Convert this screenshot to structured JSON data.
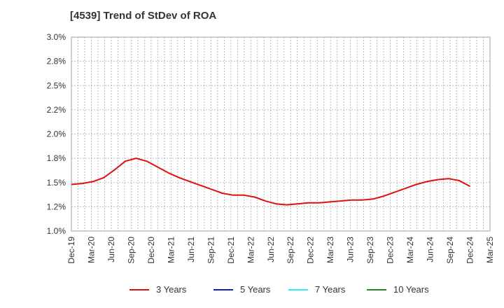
{
  "chart_data": {
    "type": "line",
    "title": "[4539]  Trend of StDev of ROA",
    "xlabel": "",
    "ylabel": "",
    "x_tick_labels": [
      "Dec-19",
      "Mar-20",
      "Jun-20",
      "Sep-20",
      "Dec-20",
      "Mar-21",
      "Jun-21",
      "Sep-21",
      "Dec-21",
      "Mar-22",
      "Jun-22",
      "Sep-22",
      "Dec-22",
      "Mar-23",
      "Jun-23",
      "Sep-23",
      "Dec-23",
      "Mar-24",
      "Jun-24",
      "Sep-24",
      "Dec-24",
      "Mar-25"
    ],
    "y_tick_labels": [
      "1.0%",
      "1.2%",
      "1.5%",
      "1.8%",
      "2.0%",
      "2.2%",
      "2.5%",
      "2.8%",
      "3.0%"
    ],
    "ylim": [
      1.0,
      3.0
    ],
    "grid": true,
    "legend_position": "bottom",
    "series": [
      {
        "name": "3 Years",
        "color": "#dd1111",
        "values": [
          1.48,
          1.49,
          1.51,
          1.55,
          1.63,
          1.72,
          1.75,
          1.72,
          1.66,
          1.6,
          1.55,
          1.51,
          1.47,
          1.43,
          1.39,
          1.37,
          1.37,
          1.35,
          1.31,
          1.28,
          1.27,
          1.28,
          1.29,
          1.29,
          1.3,
          1.31,
          1.32,
          1.32,
          1.33,
          1.36,
          1.4,
          1.44,
          1.48,
          1.51,
          1.53,
          1.54,
          1.52,
          1.46
        ]
      },
      {
        "name": "5 Years",
        "color": "#1122bb",
        "values": [
          null,
          null,
          null,
          null,
          null,
          null,
          null,
          null,
          null,
          null,
          null,
          null,
          null,
          null,
          null,
          null,
          null,
          null,
          null,
          null,
          null,
          null,
          null,
          null,
          null,
          null,
          null,
          null,
          null,
          null,
          null,
          null,
          null,
          null,
          null,
          null,
          null,
          null
        ]
      },
      {
        "name": "7 Years",
        "color": "#33eeee",
        "values": [
          null,
          null,
          null,
          null,
          null,
          null,
          null,
          null,
          null,
          null,
          null,
          null,
          null,
          null,
          null,
          null,
          null,
          null,
          null,
          null,
          null,
          null,
          null,
          null,
          null,
          null,
          null,
          null,
          null,
          null,
          null,
          null,
          null,
          null,
          null,
          null,
          null,
          null
        ]
      },
      {
        "name": "10 Years",
        "color": "#228822",
        "values": [
          null,
          null,
          null,
          null,
          null,
          null,
          null,
          null,
          null,
          null,
          null,
          null,
          null,
          null,
          null,
          null,
          null,
          null,
          null,
          null,
          null,
          null,
          null,
          null,
          null,
          null,
          null,
          null,
          null,
          null,
          null,
          null,
          null,
          null,
          null,
          null,
          null,
          null
        ]
      }
    ]
  }
}
